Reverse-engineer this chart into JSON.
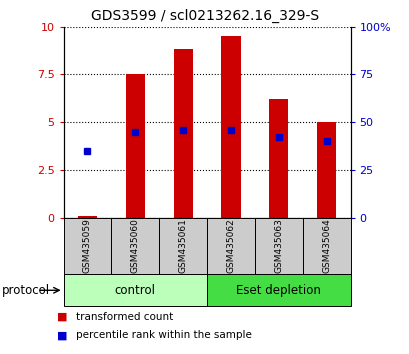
{
  "title": "GDS3599 / scl0213262.16_329-S",
  "samples": [
    "GSM435059",
    "GSM435060",
    "GSM435061",
    "GSM435062",
    "GSM435063",
    "GSM435064"
  ],
  "red_values": [
    0.08,
    7.5,
    8.8,
    9.5,
    6.2,
    5.0
  ],
  "blue_values": [
    3.5,
    4.5,
    4.6,
    4.6,
    4.2,
    4.0
  ],
  "ylim_left": [
    0,
    10
  ],
  "ylim_right": [
    0,
    100
  ],
  "yticks_left": [
    0,
    2.5,
    5,
    7.5,
    10
  ],
  "yticks_right": [
    0,
    25,
    50,
    75,
    100
  ],
  "ytick_labels_left": [
    "0",
    "2.5",
    "5",
    "7.5",
    "10"
  ],
  "ytick_labels_right": [
    "0",
    "25",
    "50",
    "75",
    "100%"
  ],
  "groups": [
    {
      "label": "control",
      "indices": [
        0,
        1,
        2
      ],
      "color": "#bbffbb"
    },
    {
      "label": "Eset depletion",
      "indices": [
        3,
        4,
        5
      ],
      "color": "#44dd44"
    }
  ],
  "group_label_prefix": "protocol",
  "legend": [
    {
      "label": "transformed count",
      "color": "#cc0000"
    },
    {
      "label": "percentile rank within the sample",
      "color": "#0000cc"
    }
  ],
  "bar_color": "#cc0000",
  "dot_color": "#0000cc",
  "bar_width": 0.4,
  "sample_bg_color": "#cccccc",
  "title_fontsize": 10,
  "axis_label_color_left": "#cc0000",
  "axis_label_color_right": "#0000cc"
}
